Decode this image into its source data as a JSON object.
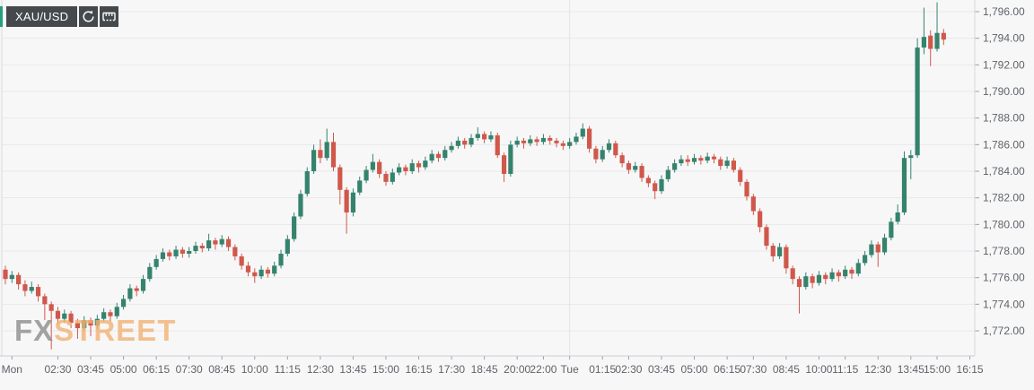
{
  "toolbar": {
    "symbol": "XAU/USD",
    "refresh_tooltip": "refresh",
    "measure_tooltip": "measure"
  },
  "watermark": {
    "part1": "FX",
    "part2": "STREET"
  },
  "chart_data": {
    "type": "candlestick",
    "symbol": "XAU/USD",
    "ylim": [
      1770.3,
      1796.9
    ],
    "y_ticks": [
      {
        "value": 1796,
        "label": "1,796.00"
      },
      {
        "value": 1794,
        "label": "1,794.00"
      },
      {
        "value": 1792,
        "label": "1,792.00"
      },
      {
        "value": 1790,
        "label": "1,790.00"
      },
      {
        "value": 1788,
        "label": "1,788.00"
      },
      {
        "value": 1786,
        "label": "1,786.00"
      },
      {
        "value": 1784,
        "label": "1,784.00"
      },
      {
        "value": 1782,
        "label": "1,782.00"
      },
      {
        "value": 1780,
        "label": "1,780.00"
      },
      {
        "value": 1778,
        "label": "1,778.00"
      },
      {
        "value": 1776,
        "label": "1,776.00"
      },
      {
        "value": 1774,
        "label": "1,774.00"
      },
      {
        "value": 1772,
        "label": "1,772.00"
      }
    ],
    "x_ticks": [
      {
        "label": "Mon",
        "i": 1,
        "session_line": false
      },
      {
        "label": "02:30",
        "i": 8,
        "session_line": false
      },
      {
        "label": "03:45",
        "i": 13,
        "session_line": false
      },
      {
        "label": "05:00",
        "i": 18,
        "session_line": false
      },
      {
        "label": "06:15",
        "i": 23,
        "session_line": false
      },
      {
        "label": "07:30",
        "i": 28,
        "session_line": false
      },
      {
        "label": "08:45",
        "i": 33,
        "session_line": false
      },
      {
        "label": "10:00",
        "i": 38,
        "session_line": false
      },
      {
        "label": "11:15",
        "i": 43,
        "session_line": false
      },
      {
        "label": "12:30",
        "i": 48,
        "session_line": false
      },
      {
        "label": "13:45",
        "i": 53,
        "session_line": false
      },
      {
        "label": "15:00",
        "i": 58,
        "session_line": false
      },
      {
        "label": "16:15",
        "i": 63,
        "session_line": false
      },
      {
        "label": "17:30",
        "i": 68,
        "session_line": false
      },
      {
        "label": "18:45",
        "i": 73,
        "session_line": false
      },
      {
        "label": "20:00",
        "i": 78,
        "session_line": false
      },
      {
        "label": "22:00",
        "i": 82,
        "session_line": false
      },
      {
        "label": "Tue",
        "i": 86,
        "session_line": true
      },
      {
        "label": "01:15",
        "i": 91,
        "session_line": false
      },
      {
        "label": "02:30",
        "i": 95,
        "session_line": false
      },
      {
        "label": "03:45",
        "i": 100,
        "session_line": false
      },
      {
        "label": "05:00",
        "i": 105,
        "session_line": false
      },
      {
        "label": "06:15",
        "i": 110,
        "session_line": false
      },
      {
        "label": "07:30",
        "i": 114,
        "session_line": false
      },
      {
        "label": "08:45",
        "i": 119,
        "session_line": false
      },
      {
        "label": "10:00",
        "i": 124,
        "session_line": false
      },
      {
        "label": "11:15",
        "i": 128,
        "session_line": false
      },
      {
        "label": "12:30",
        "i": 133,
        "session_line": false
      },
      {
        "label": "13:45",
        "i": 138,
        "session_line": false
      },
      {
        "label": "15:00",
        "i": 142,
        "session_line": false
      },
      {
        "label": "16:15",
        "i": 147,
        "session_line": false
      }
    ],
    "candles_ohlc": [
      [
        1776.6,
        1776.9,
        1775.5,
        1775.9
      ],
      [
        1775.9,
        1776.5,
        1775.6,
        1776.2
      ],
      [
        1776.2,
        1776.4,
        1775.1,
        1775.5
      ],
      [
        1775.5,
        1775.8,
        1774.6,
        1775.0
      ],
      [
        1775.0,
        1775.7,
        1774.8,
        1775.3
      ],
      [
        1775.3,
        1775.5,
        1774.2,
        1774.6
      ],
      [
        1774.6,
        1774.8,
        1772.8,
        1774.0
      ],
      [
        1774.0,
        1774.2,
        1770.6,
        1773.5
      ],
      [
        1773.5,
        1773.8,
        1772.5,
        1772.9
      ],
      [
        1772.9,
        1773.6,
        1772.6,
        1773.3
      ],
      [
        1773.3,
        1773.5,
        1772.2,
        1772.6
      ],
      [
        1772.6,
        1772.9,
        1771.4,
        1772.2
      ],
      [
        1772.2,
        1773.1,
        1772.0,
        1772.8
      ],
      [
        1772.8,
        1773.0,
        1771.6,
        1772.4
      ],
      [
        1772.4,
        1773.2,
        1772.1,
        1772.9
      ],
      [
        1772.9,
        1773.7,
        1772.7,
        1773.4
      ],
      [
        1773.4,
        1773.6,
        1772.7,
        1773.1
      ],
      [
        1773.1,
        1774.1,
        1772.9,
        1773.8
      ],
      [
        1773.8,
        1774.7,
        1773.6,
        1774.4
      ],
      [
        1774.4,
        1775.5,
        1774.2,
        1775.2
      ],
      [
        1775.2,
        1775.4,
        1774.6,
        1775.0
      ],
      [
        1775.0,
        1776.2,
        1774.8,
        1775.9
      ],
      [
        1775.9,
        1777.1,
        1775.7,
        1776.8
      ],
      [
        1776.8,
        1777.7,
        1776.6,
        1777.4
      ],
      [
        1777.4,
        1778.2,
        1777.2,
        1777.9
      ],
      [
        1777.9,
        1778.1,
        1777.3,
        1777.6
      ],
      [
        1777.6,
        1778.4,
        1777.4,
        1778.1
      ],
      [
        1778.1,
        1778.3,
        1777.5,
        1777.8
      ],
      [
        1777.8,
        1778.3,
        1777.5,
        1778.0
      ],
      [
        1778.0,
        1778.7,
        1777.8,
        1778.4
      ],
      [
        1778.4,
        1778.6,
        1777.9,
        1778.2
      ],
      [
        1778.2,
        1779.3,
        1778.0,
        1778.8
      ],
      [
        1778.8,
        1779.0,
        1778.1,
        1778.5
      ],
      [
        1778.5,
        1779.2,
        1778.3,
        1778.9
      ],
      [
        1778.9,
        1779.1,
        1778.0,
        1778.3
      ],
      [
        1778.3,
        1778.5,
        1777.3,
        1777.6
      ],
      [
        1777.6,
        1777.8,
        1776.6,
        1776.9
      ],
      [
        1776.9,
        1777.2,
        1776.1,
        1776.4
      ],
      [
        1776.4,
        1776.7,
        1775.6,
        1776.1
      ],
      [
        1776.1,
        1776.9,
        1775.9,
        1776.6
      ],
      [
        1776.6,
        1776.8,
        1776.0,
        1776.3
      ],
      [
        1776.3,
        1777.2,
        1776.1,
        1776.9
      ],
      [
        1776.9,
        1778.1,
        1776.7,
        1777.8
      ],
      [
        1777.8,
        1779.2,
        1777.6,
        1778.9
      ],
      [
        1778.9,
        1780.9,
        1778.7,
        1780.6
      ],
      [
        1780.6,
        1782.6,
        1780.4,
        1782.3
      ],
      [
        1782.3,
        1784.3,
        1782.1,
        1784.0
      ],
      [
        1784.0,
        1786.0,
        1783.8,
        1785.6
      ],
      [
        1785.6,
        1786.4,
        1784.6,
        1785.0
      ],
      [
        1785.0,
        1787.2,
        1784.8,
        1786.2
      ],
      [
        1786.2,
        1786.9,
        1784.0,
        1784.3
      ],
      [
        1784.3,
        1784.5,
        1781.5,
        1782.6
      ],
      [
        1782.6,
        1782.8,
        1779.3,
        1780.9
      ],
      [
        1780.9,
        1782.7,
        1780.6,
        1782.4
      ],
      [
        1782.4,
        1783.6,
        1782.2,
        1783.3
      ],
      [
        1783.3,
        1784.4,
        1783.1,
        1784.1
      ],
      [
        1784.1,
        1785.3,
        1783.9,
        1784.7
      ],
      [
        1784.7,
        1784.9,
        1783.5,
        1783.8
      ],
      [
        1783.8,
        1784.0,
        1782.9,
        1783.2
      ],
      [
        1783.2,
        1784.2,
        1783.0,
        1783.9
      ],
      [
        1783.9,
        1784.6,
        1783.7,
        1784.3
      ],
      [
        1784.3,
        1784.5,
        1783.7,
        1784.0
      ],
      [
        1784.0,
        1784.9,
        1783.8,
        1784.6
      ],
      [
        1784.6,
        1784.8,
        1783.9,
        1784.3
      ],
      [
        1784.3,
        1785.1,
        1784.1,
        1784.8
      ],
      [
        1784.8,
        1785.6,
        1784.6,
        1785.3
      ],
      [
        1785.3,
        1785.5,
        1784.7,
        1785.0
      ],
      [
        1785.0,
        1785.9,
        1784.8,
        1785.6
      ],
      [
        1785.6,
        1786.2,
        1785.4,
        1785.9
      ],
      [
        1785.9,
        1786.6,
        1785.7,
        1786.3
      ],
      [
        1786.3,
        1786.5,
        1785.7,
        1786.0
      ],
      [
        1786.0,
        1786.8,
        1785.8,
        1786.5
      ],
      [
        1786.5,
        1787.3,
        1786.3,
        1786.8
      ],
      [
        1786.8,
        1787.0,
        1786.1,
        1786.4
      ],
      [
        1786.4,
        1787.0,
        1786.2,
        1786.7
      ],
      [
        1786.7,
        1786.9,
        1785.0,
        1785.2
      ],
      [
        1785.2,
        1785.4,
        1783.2,
        1783.8
      ],
      [
        1783.8,
        1786.3,
        1783.6,
        1786.0
      ],
      [
        1786.0,
        1786.6,
        1785.8,
        1786.3
      ],
      [
        1786.3,
        1786.5,
        1785.7,
        1786.1
      ],
      [
        1786.1,
        1786.7,
        1785.9,
        1786.4
      ],
      [
        1786.4,
        1786.6,
        1785.9,
        1786.2
      ],
      [
        1786.2,
        1786.8,
        1786.0,
        1786.5
      ],
      [
        1786.5,
        1786.7,
        1786.0,
        1786.3
      ],
      [
        1786.3,
        1786.5,
        1785.8,
        1786.1
      ],
      [
        1786.1,
        1786.3,
        1785.6,
        1785.9
      ],
      [
        1785.9,
        1786.5,
        1785.7,
        1786.2
      ],
      [
        1786.2,
        1786.9,
        1786.0,
        1786.6
      ],
      [
        1786.6,
        1787.6,
        1786.4,
        1787.2
      ],
      [
        1787.2,
        1787.4,
        1785.4,
        1785.7
      ],
      [
        1785.7,
        1785.9,
        1784.6,
        1784.9
      ],
      [
        1784.9,
        1785.9,
        1784.7,
        1785.6
      ],
      [
        1785.6,
        1786.4,
        1785.4,
        1786.1
      ],
      [
        1786.1,
        1786.3,
        1785.0,
        1785.2
      ],
      [
        1785.2,
        1785.4,
        1784.3,
        1784.6
      ],
      [
        1784.6,
        1784.8,
        1783.8,
        1784.1
      ],
      [
        1784.1,
        1784.7,
        1783.9,
        1784.4
      ],
      [
        1784.4,
        1784.6,
        1783.2,
        1783.5
      ],
      [
        1783.5,
        1783.7,
        1782.8,
        1783.1
      ],
      [
        1783.1,
        1783.3,
        1781.9,
        1782.5
      ],
      [
        1782.5,
        1783.7,
        1782.3,
        1783.4
      ],
      [
        1783.4,
        1784.4,
        1783.2,
        1784.1
      ],
      [
        1784.1,
        1784.9,
        1783.9,
        1784.6
      ],
      [
        1784.6,
        1785.2,
        1784.4,
        1784.9
      ],
      [
        1784.9,
        1785.2,
        1784.4,
        1784.7
      ],
      [
        1784.7,
        1785.3,
        1784.5,
        1785.0
      ],
      [
        1785.0,
        1785.2,
        1784.5,
        1784.8
      ],
      [
        1784.8,
        1785.4,
        1784.6,
        1785.1
      ],
      [
        1785.1,
        1785.3,
        1784.6,
        1784.9
      ],
      [
        1784.9,
        1785.1,
        1784.1,
        1784.4
      ],
      [
        1784.4,
        1785.1,
        1784.2,
        1784.8
      ],
      [
        1784.8,
        1785.0,
        1783.9,
        1784.1
      ],
      [
        1784.1,
        1784.3,
        1782.9,
        1783.2
      ],
      [
        1783.2,
        1783.4,
        1781.8,
        1782.1
      ],
      [
        1782.1,
        1782.3,
        1780.7,
        1781.0
      ],
      [
        1781.0,
        1781.2,
        1779.4,
        1779.8
      ],
      [
        1779.8,
        1780.0,
        1778.1,
        1778.4
      ],
      [
        1778.4,
        1778.6,
        1777.2,
        1777.6
      ],
      [
        1777.6,
        1778.6,
        1777.4,
        1778.3
      ],
      [
        1778.3,
        1778.5,
        1776.3,
        1776.7
      ],
      [
        1776.7,
        1776.9,
        1775.5,
        1775.9
      ],
      [
        1775.9,
        1776.1,
        1773.3,
        1775.3
      ],
      [
        1775.3,
        1776.4,
        1775.1,
        1776.1
      ],
      [
        1776.1,
        1776.3,
        1775.2,
        1775.6
      ],
      [
        1775.6,
        1776.5,
        1775.4,
        1776.2
      ],
      [
        1776.2,
        1776.4,
        1775.5,
        1775.9
      ],
      [
        1775.9,
        1776.7,
        1775.7,
        1776.4
      ],
      [
        1776.4,
        1776.6,
        1775.7,
        1776.1
      ],
      [
        1776.1,
        1776.9,
        1775.9,
        1776.6
      ],
      [
        1776.6,
        1776.8,
        1775.9,
        1776.3
      ],
      [
        1776.3,
        1777.4,
        1776.1,
        1777.1
      ],
      [
        1777.1,
        1778.0,
        1776.9,
        1777.7
      ],
      [
        1777.7,
        1778.8,
        1777.5,
        1778.5
      ],
      [
        1778.5,
        1778.7,
        1776.8,
        1777.9
      ],
      [
        1777.9,
        1779.3,
        1777.7,
        1779.0
      ],
      [
        1779.0,
        1780.5,
        1778.8,
        1780.2
      ],
      [
        1780.2,
        1781.5,
        1780.0,
        1780.9
      ],
      [
        1780.9,
        1785.5,
        1780.7,
        1785.0
      ],
      [
        1785.0,
        1785.6,
        1783.4,
        1785.2
      ],
      [
        1785.2,
        1794.0,
        1785.0,
        1793.3
      ],
      [
        1793.3,
        1796.3,
        1792.8,
        1794.1
      ],
      [
        1794.2,
        1794.6,
        1791.9,
        1793.2
      ],
      [
        1793.2,
        1796.7,
        1793.0,
        1794.4
      ],
      [
        1794.4,
        1794.7,
        1793.5,
        1793.9
      ]
    ],
    "last_price": 1793.9,
    "colors": {
      "up": "#35836d",
      "down": "#d0584b",
      "grid": "#e9e9eb",
      "session_grid": "#e2e3e6",
      "border": "#d5d8de",
      "axis_text": "#5f6368",
      "background": "#f7f7f8",
      "accent": "#26a17c",
      "toolbar_bg": "#45494c"
    },
    "legend_position": "none",
    "grid": "horizontal + day-boundary vertical"
  }
}
